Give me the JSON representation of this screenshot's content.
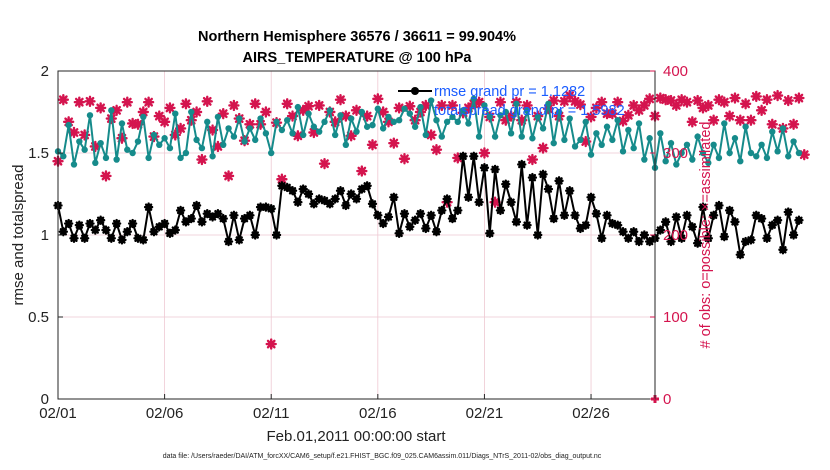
{
  "chart_data": {
    "type": "line",
    "title": "Northern Hemisphere 36576 / 36611 = 99.904%",
    "subtitle": "AIRS_TEMPERATURE @ 100 hPa",
    "xlabel": "Feb.01,2011 00:00:00 start",
    "ylabel": "rmse and totalspread",
    "ylabel_right": "# of obs: o=possible; ×=assimilated",
    "footnote": "data file: /Users/raeder/DAI/ATM_forcXX/CAM6_setup/f.e21.FHIST_BGC.f09_025.CAM6assim.011/Diags_NTrS_2011-02/obs_diag_output.nc",
    "x_tick_labels": [
      "02/01",
      "02/06",
      "02/11",
      "02/16",
      "02/21",
      "02/26"
    ],
    "x_tick_values": [
      0,
      5,
      10,
      15,
      20,
      25
    ],
    "xlim": [
      0,
      28
    ],
    "ylim": [
      0,
      2
    ],
    "y_tick_labels": [
      "0",
      "0.5",
      "1",
      "1.5",
      "2"
    ],
    "y_tick_values": [
      0,
      0.5,
      1,
      1.5,
      2
    ],
    "ylim_right": [
      0,
      400
    ],
    "y_tick_labels_right": [
      "0",
      "100",
      "200",
      "300",
      "400"
    ],
    "y_tick_values_right": [
      0,
      100,
      200,
      300,
      400
    ],
    "grid": true,
    "legend_position": "top-right",
    "step": 0.25,
    "colors": {
      "rmse": "#000000",
      "spread": "#168b8b",
      "obs": "#d4144e",
      "legend_text": "#1a5cff",
      "grid": "#eec8d2"
    },
    "series": [
      {
        "name": "rmse grand pr = 1.1282",
        "style": "black-line-star",
        "values": [
          1.18,
          1.02,
          1.07,
          0.98,
          1.06,
          0.98,
          1.07,
          1.03,
          1.09,
          1.03,
          0.98,
          1.07,
          0.97,
          1.02,
          1.07,
          0.98,
          0.97,
          1.17,
          1.02,
          1.05,
          1.07,
          1.01,
          1.03,
          1.15,
          1.08,
          1.1,
          1.18,
          1.08,
          1.13,
          1.11,
          1.13,
          1.1,
          0.96,
          1.12,
          0.97,
          1.1,
          1.12,
          1.0,
          1.17,
          1.17,
          1.16,
          1.0,
          1.3,
          1.29,
          1.27,
          1.2,
          1.28,
          1.25,
          1.19,
          1.22,
          1.21,
          1.19,
          1.22,
          1.27,
          1.18,
          1.25,
          1.22,
          1.28,
          1.3,
          1.19,
          1.12,
          1.07,
          1.11,
          1.23,
          1.01,
          1.13,
          1.05,
          1.09,
          1.13,
          1.04,
          1.12,
          1.02,
          1.15,
          1.22,
          1.1,
          1.15,
          1.48,
          1.23,
          1.48,
          1.2,
          1.41,
          1.01,
          1.4,
          1.15,
          1.31,
          1.2,
          1.08,
          1.43,
          1.06,
          1.35,
          1.0,
          1.37,
          1.28,
          1.1,
          1.33,
          1.12,
          1.27,
          1.12,
          1.04,
          1.06,
          1.23,
          1.13,
          0.98,
          1.12,
          1.07,
          1.06,
          1.02,
          0.98,
          1.02,
          0.96,
          1.0,
          0.96,
          0.98,
          1.03,
          1.08,
          0.96,
          1.11,
          0.98,
          1.12,
          1.05,
          0.95,
          1.17,
          0.98,
          1.12,
          1.18,
          0.99,
          1.15,
          1.08,
          0.88,
          0.96,
          0.97,
          1.12,
          1.1,
          0.98,
          1.06,
          1.09,
          0.91,
          1.14,
          1.0,
          1.09
        ]
      },
      {
        "name": "totalspread grand pr = 1.5982",
        "style": "teal-line-dot",
        "values": [
          1.51,
          1.48,
          1.67,
          1.43,
          1.57,
          1.52,
          1.73,
          1.44,
          1.56,
          1.47,
          1.76,
          1.46,
          1.68,
          1.52,
          1.5,
          1.57,
          1.72,
          1.47,
          1.61,
          1.55,
          1.59,
          1.53,
          1.74,
          1.47,
          1.5,
          1.75,
          1.58,
          1.53,
          1.69,
          1.48,
          1.72,
          1.55,
          1.65,
          1.6,
          1.71,
          1.57,
          1.65,
          1.58,
          1.71,
          1.62,
          1.5,
          1.69,
          1.64,
          1.7,
          1.62,
          1.78,
          1.61,
          1.74,
          1.66,
          1.63,
          1.69,
          1.76,
          1.61,
          1.73,
          1.55,
          1.71,
          1.63,
          1.75,
          1.66,
          1.67,
          1.77,
          1.65,
          1.72,
          1.69,
          1.7,
          1.77,
          1.74,
          1.66,
          1.78,
          1.61,
          1.82,
          1.7,
          1.6,
          1.69,
          1.72,
          1.69,
          1.76,
          1.68,
          1.83,
          1.6,
          1.79,
          1.72,
          1.6,
          1.73,
          1.75,
          1.62,
          1.8,
          1.6,
          1.76,
          1.59,
          1.72,
          1.65,
          1.8,
          1.56,
          1.75,
          1.58,
          1.71,
          1.54,
          1.58,
          1.69,
          1.49,
          1.62,
          1.55,
          1.66,
          1.58,
          1.7,
          1.51,
          1.64,
          1.53,
          1.68,
          1.46,
          1.59,
          1.41,
          1.62,
          1.45,
          1.56,
          1.43,
          1.5,
          1.55,
          1.46,
          1.6,
          1.5,
          1.44,
          1.55,
          1.47,
          1.68,
          1.5,
          1.59,
          1.45,
          1.66,
          1.5,
          1.48,
          1.55,
          1.47,
          1.63,
          1.51,
          1.65,
          1.48,
          1.57,
          1.5
        ]
      },
      {
        "name": "# of obs assimilated",
        "style": "crimson-star-right-axis",
        "values": [
          290,
          365,
          338,
          325,
          362,
          322,
          363,
          308,
          355,
          272,
          342,
          352,
          318,
          362,
          336,
          335,
          350,
          362,
          320,
          345,
          338,
          355,
          322,
          330,
          360,
          340,
          350,
          292,
          363,
          328,
          308,
          348,
          272,
          358,
          342,
          315,
          335,
          360,
          335,
          350,
          67,
          337,
          268,
          360,
          345,
          321,
          352,
          357,
          325,
          358,
          287,
          350,
          338,
          365,
          345,
          321,
          352,
          278,
          345,
          310,
          366,
          350,
          338,
          312,
          355,
          293,
          357,
          340,
          350,
          358,
          322,
          304,
          358,
          240,
          358,
          294,
          349,
          355,
          360,
          362,
          300,
          344,
          240,
          362,
          340,
          345,
          362,
          340,
          358,
          292,
          345,
          306,
          354,
          364,
          345,
          363,
          370,
          363,
          359,
          314,
          344,
          355,
          362,
          348,
          348,
          362,
          339,
          346,
          358,
          352,
          358,
          366,
          345,
          367,
          365,
          364,
          358,
          365,
          362,
          338,
          364,
          355,
          358,
          340,
          365,
          362,
          345,
          367,
          340,
          360,
          340,
          369,
          352,
          365,
          335,
          370,
          330,
          364,
          335,
          367,
          298
        ]
      }
    ]
  }
}
